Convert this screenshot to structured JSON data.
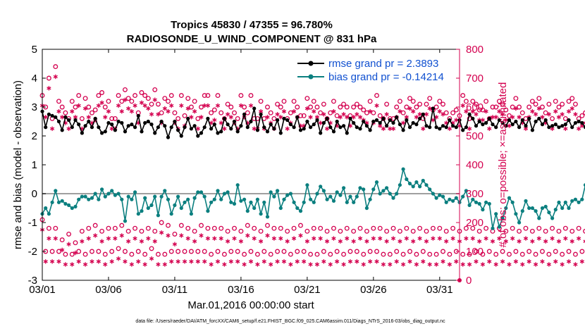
{
  "chart_data": {
    "type": "line",
    "title": "Tropics 45830 / 47355 = 96.780%",
    "subtitle": "RADIOSONDE_U_WIND_COMPONENT @ 831 hPa",
    "xlabel": "Mar.01,2016 00:00:00 start",
    "ylabel": "rmse and bias (model - observation)",
    "y2label": "# of obs: o=possible; ×=assimilated",
    "footnote": "data file: /Users/raeder/DAI/ATM_forcXX/CAM6_setup/f.e21.FHIST_BGC.f09_025.CAM6assim.011/Diags_NTrS_2016-03/obs_diag_output.nc",
    "xlim": [
      0,
      31.5
    ],
    "ylim": [
      -3,
      5
    ],
    "y2lim": [
      0,
      800
    ],
    "xticks": [
      0,
      5,
      10,
      15,
      20,
      25,
      30
    ],
    "xticklabels": [
      "03/01",
      "03/06",
      "03/11",
      "03/16",
      "03/21",
      "03/26",
      "03/31"
    ],
    "yticks": [
      -3,
      -2,
      -1,
      0,
      1,
      2,
      3,
      4,
      5
    ],
    "yticklabels": [
      "-3",
      "-2",
      "-1",
      "0",
      "1",
      "2",
      "3",
      "4",
      "5"
    ],
    "y2ticks": [
      0,
      100,
      200,
      300,
      400,
      500,
      600,
      700,
      800
    ],
    "y2ticklabels": [
      "0",
      "100",
      "200",
      "300",
      "400",
      "500",
      "600",
      "700",
      "800"
    ],
    "x_step_days": 0.25,
    "series": [
      {
        "name": "rmse grand pr = 2.3893",
        "color": "#000000",
        "marker": "dot",
        "values": [
          2.85,
          2.3,
          2.75,
          2.7,
          2.65,
          2.5,
          2.2,
          2.65,
          2.55,
          2.3,
          2.55,
          2.4,
          2.1,
          2.35,
          2.5,
          2.3,
          2.6,
          2.3,
          2.1,
          2.15,
          2.45,
          2.4,
          2.2,
          2.5,
          2.45,
          2.15,
          2.35,
          2.4,
          2.3,
          2.7,
          2.15,
          2.45,
          2.5,
          2.4,
          2.1,
          2.3,
          2.5,
          2.35,
          1.95,
          2.3,
          2.5,
          2.2,
          2.0,
          2.3,
          2.6,
          2.25,
          2.35,
          2.0,
          2.1,
          2.3,
          2.6,
          2.25,
          2.4,
          2.1,
          2.15,
          2.6,
          2.4,
          2.25,
          2.5,
          2.15,
          2.35,
          2.75,
          2.3,
          2.5,
          2.95,
          2.2,
          2.75,
          2.3,
          2.15,
          2.4,
          2.25,
          2.55,
          2.1,
          2.6,
          2.55,
          2.4,
          2.3,
          2.65,
          2.2,
          2.25,
          2.5,
          2.3,
          2.4,
          2.55,
          2.1,
          2.45,
          2.6,
          2.3,
          2.15,
          2.5,
          2.3,
          2.35,
          2.1,
          2.6,
          2.45,
          2.3,
          2.25,
          2.5,
          2.35,
          2.2,
          2.5,
          2.55,
          2.45,
          2.6,
          2.35,
          2.55,
          2.45,
          2.65,
          2.4,
          2.2,
          2.55,
          2.3,
          2.45,
          2.4,
          2.6,
          2.75,
          2.35,
          2.3,
          2.95,
          2.3,
          2.25,
          2.35,
          2.3,
          2.55,
          2.35,
          2.3,
          2.55,
          2.2,
          2.3,
          2.75,
          2.6,
          2.35,
          2.5,
          2.4,
          2.45,
          2.6,
          2.4,
          2.3,
          2.55,
          2.45,
          2.35,
          2.55,
          2.4,
          2.5,
          2.3,
          2.55,
          2.35,
          2.6,
          2.2,
          2.5,
          2.6,
          2.4,
          2.55,
          2.3,
          2.35,
          2.4,
          2.3,
          2.35,
          2.4,
          2.55,
          2.3,
          2.45,
          2.5,
          2.45,
          2.3,
          2.35,
          2.85
        ]
      },
      {
        "name": "bias grand pr = -0.14214",
        "color": "#0b7f7f",
        "marker": "dot",
        "values": [
          -0.7,
          -0.5,
          -0.7,
          -0.3,
          0.1,
          -0.3,
          -0.25,
          -0.35,
          -0.4,
          -0.5,
          -0.45,
          -0.2,
          -0.1,
          -0.1,
          -0.2,
          -0.15,
          0.0,
          -0.2,
          0.15,
          -0.1,
          0.0,
          0.1,
          -0.05,
          0.0,
          -0.2,
          -0.95,
          -0.1,
          -0.2,
          0.05,
          -0.7,
          -0.6,
          -0.15,
          -0.5,
          -0.4,
          -0.1,
          -0.75,
          -0.1,
          0.1,
          -0.2,
          -0.7,
          -0.4,
          -0.1,
          -0.5,
          -0.3,
          -0.2,
          -0.7,
          -0.15,
          0.05,
          0.05,
          -0.1,
          -0.6,
          -0.3,
          -0.2,
          0.1,
          -0.2,
          0.0,
          0.05,
          -0.3,
          -0.35,
          0.3,
          -0.25,
          -0.2,
          -0.6,
          -0.3,
          -0.5,
          -0.2,
          -0.7,
          -0.3,
          -0.8,
          0.05,
          -0.1,
          0.1,
          -0.5,
          -0.2,
          -0.05,
          0.0,
          -0.3,
          -0.5,
          -0.6,
          -0.3,
          0.3,
          -0.2,
          -0.3,
          0.0,
          0.25,
          0.1,
          -0.2,
          -0.1,
          -0.25,
          0.05,
          -0.05,
          0.2,
          -0.3,
          -0.1,
          -0.3,
          -0.1,
          0.2,
          0.15,
          -0.5,
          -0.2,
          0.15,
          0.4,
          0.0,
          0.1,
          0.2,
          0.0,
          -0.15,
          0.0,
          0.3,
          0.85,
          0.5,
          0.35,
          0.25,
          0.4,
          0.25,
          0.45,
          0.3,
          0.15,
          0.0,
          -0.15,
          -0.05,
          -0.1,
          -0.3,
          -0.2,
          -0.25,
          -0.15,
          -0.3,
          -0.1,
          0.1,
          -0.4,
          -0.2,
          -0.3,
          -0.35,
          -0.55,
          -0.3,
          -0.35,
          -1.2,
          -0.7,
          -1.15,
          -0.85,
          -0.5,
          -0.15,
          -0.3,
          -0.7,
          -1.0,
          -0.6,
          -0.25,
          -0.5,
          -0.5,
          -0.6,
          -0.85,
          -0.5,
          -0.45,
          -0.65,
          -0.85,
          -0.55,
          -0.3,
          -0.5,
          -0.3,
          -0.5,
          -0.25,
          -0.2,
          -0.3,
          -0.2,
          0.3,
          -0.1,
          -0.4,
          -0.1,
          -0.35
        ]
      }
    ],
    "obs_possible": [
      {
        "name": "rmse possible (upper)",
        "values": [
          640,
          600,
          700,
          560,
          740,
          620,
          600,
          580,
          560,
          620,
          600,
          640,
          560,
          630,
          600,
          580,
          590,
          640,
          650,
          600,
          620,
          560,
          560,
          640,
          620,
          660,
          630,
          620,
          640,
          580,
          650,
          640,
          630,
          610,
          660,
          610,
          580,
          630,
          620,
          640,
          580,
          560,
          640,
          570,
          630,
          600,
          620,
          560,
          600,
          640,
          640,
          580,
          590,
          640,
          580,
          560,
          610,
          600,
          580,
          560,
          640,
          600,
          580,
          640,
          560,
          560,
          620,
          560,
          600,
          580,
          560,
          610,
          600,
          620,
          560,
          580,
          620,
          600,
          570,
          570,
          630,
          600,
          620,
          600,
          580,
          610,
          560,
          580,
          620,
          570,
          600,
          610,
          600,
          570,
          600,
          610,
          600,
          590,
          580,
          620,
          580,
          640,
          570,
          560,
          610,
          560,
          560,
          600,
          620,
          580,
          600,
          630,
          620,
          600,
          610,
          560,
          610,
          630,
          590,
          600,
          620,
          610,
          580,
          560,
          580,
          590,
          570,
          640,
          620,
          560,
          620,
          610,
          590,
          590,
          620,
          560,
          600,
          600,
          620,
          610,
          590,
          570,
          600,
          630,
          600,
          580,
          560,
          600,
          620,
          610,
          630,
          600,
          580,
          610,
          560,
          620,
          600,
          610,
          560,
          620,
          630,
          610,
          560,
          570,
          580,
          600,
          560,
          610,
          600,
          560,
          620
        ]
      },
      {
        "name": "bias possible (lower)",
        "values": [
          210,
          100,
          180,
          100,
          180,
          100,
          140,
          90,
          160,
          90,
          130,
          100,
          170,
          90,
          180,
          100,
          190,
          100,
          170,
          90,
          180,
          100,
          180,
          110,
          190,
          100,
          170,
          90,
          180,
          100,
          170,
          90,
          180,
          110,
          170,
          90,
          200,
          90,
          190,
          100,
          160,
          100,
          190,
          100,
          180,
          100,
          170,
          100,
          190,
          100,
          180,
          90,
          180,
          100,
          180,
          90,
          170,
          100,
          180,
          100,
          170,
          90,
          190,
          100,
          180,
          90,
          170,
          100,
          190,
          90,
          180,
          100,
          180,
          100,
          170,
          90,
          180,
          100,
          190,
          100,
          170,
          90,
          180,
          90,
          180,
          100,
          170,
          90,
          180,
          100,
          170,
          90,
          180,
          100,
          170,
          100,
          180,
          90,
          170,
          100,
          180,
          100,
          180,
          90,
          170,
          90,
          180,
          100,
          170,
          90,
          180,
          100,
          170,
          90,
          180,
          100,
          170,
          90,
          180,
          90,
          180,
          100,
          170,
          90,
          180,
          100,
          170,
          90,
          180,
          90,
          180,
          100,
          170,
          90,
          180,
          100,
          170,
          90,
          180,
          100,
          170,
          90,
          180,
          100,
          170,
          90,
          180,
          100,
          170,
          90,
          180,
          100,
          170,
          90,
          180,
          100,
          170,
          90,
          180,
          100,
          170,
          90,
          180,
          100,
          170,
          90,
          180,
          90,
          180,
          100,
          170,
          90,
          110,
          0,
          110
        ]
      }
    ],
    "legend": {
      "location": "top-right",
      "entries": [
        "rmse grand pr = 2.3893",
        "bias grand pr = -0.14214"
      ]
    },
    "colors": {
      "axes": "#000000",
      "right_axis": "#d4004f",
      "zero_line": "#a0a0a0",
      "rmse": "#000000",
      "bias": "#0b7f7f",
      "obs": "#d4004f"
    }
  }
}
